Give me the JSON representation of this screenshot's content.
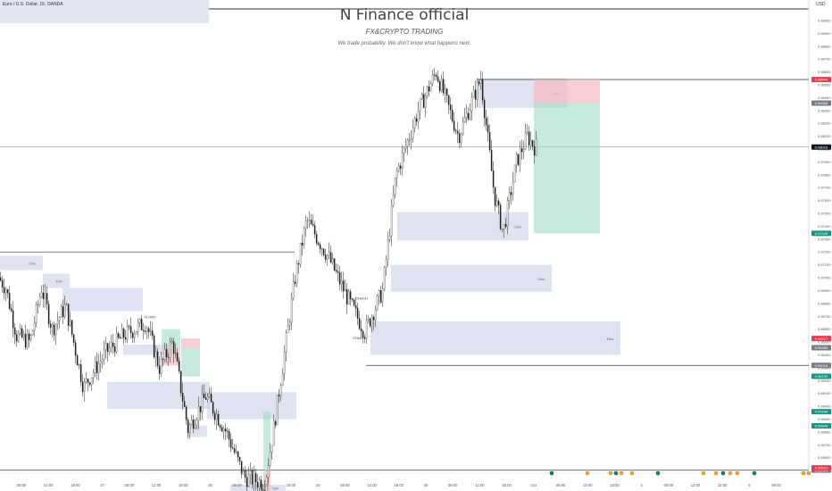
{
  "symbol": "Euro / U.S. Dollar, 15, OANDA",
  "currency": "USD",
  "watermark": {
    "title": "N Finance official",
    "subtitle": "FX&CRYPTO TRADING",
    "tagline": "We trade probability. We don't know what happens next."
  },
  "chart_data": {
    "type": "candlestick",
    "ylim": [
      0.9548,
      0.9909
    ],
    "y_ticks": [
      0.99,
      0.989,
      0.988,
      0.987,
      0.986,
      0.985,
      0.984,
      0.983,
      0.982,
      0.981,
      0.98,
      0.979,
      0.978,
      0.977,
      0.976,
      0.975,
      0.974,
      0.973,
      0.972,
      0.971,
      0.97,
      0.969,
      0.968,
      0.967,
      0.966,
      0.965,
      0.964,
      0.963,
      0.962,
      0.961,
      0.96,
      0.959,
      0.958,
      0.957,
      0.956,
      0.955
    ],
    "x_labels": [
      "06:00",
      "12:00",
      "18:00",
      "27",
      "06:00",
      "12:00",
      "18:00",
      "28",
      "06:00",
      "12:00",
      "18:00",
      "29",
      "06:00",
      "12:00",
      "18:00",
      "30",
      "06:00",
      "12:00",
      "18:00",
      "Oct",
      "06:00",
      "12:00",
      "18:00",
      "4",
      "06:00",
      "12:00",
      "18:00",
      "5",
      "06:00"
    ],
    "current_price": 0.98016,
    "price_badges": [
      {
        "value": "0.98541",
        "color": "#f23645"
      },
      {
        "value": "0.98358",
        "color": "#787b86"
      },
      {
        "value": "0.98016",
        "color": "#131722"
      },
      {
        "value": "0.97345",
        "color": "#089981"
      },
      {
        "value": "0.96527",
        "color": "#f23645"
      },
      {
        "value": "0.96455",
        "color": "#787b86"
      },
      {
        "value": "0.96318",
        "color": "#787b86"
      },
      {
        "value": "0.96233",
        "color": "#089981"
      },
      {
        "value": "0.95958",
        "color": "#089981"
      },
      {
        "value": "0.95848",
        "color": "#089981"
      },
      {
        "value": "0.95503",
        "color": "#787b86"
      },
      {
        "value": "0.95521",
        "color": "#f23645"
      }
    ],
    "zones": [
      {
        "x1": 0,
        "x2": 48,
        "y1": 0.9717,
        "y2": 0.9706,
        "label": "15m"
      },
      {
        "x1": 48,
        "x2": 78,
        "y1": 0.9703,
        "y2": 0.9692,
        "label": "15m"
      },
      {
        "x1": 70,
        "x2": 160,
        "y1": 0.9692,
        "y2": 0.9674,
        "label": ""
      },
      {
        "x1": 138,
        "x2": 192,
        "y1": 0.9648,
        "y2": 0.964,
        "label": ""
      },
      {
        "x1": 120,
        "x2": 235,
        "y1": 0.9619,
        "y2": 0.9598,
        "label": ""
      },
      {
        "x1": 210,
        "x2": 232,
        "y1": 0.9585,
        "y2": 0.9576,
        "label": ""
      },
      {
        "x1": 232,
        "x2": 332,
        "y1": 0.9611,
        "y2": 0.959,
        "label": ""
      },
      {
        "x1": 258,
        "x2": 320,
        "y1": 0.9539,
        "y2": 0.9534,
        "label": "15m"
      },
      {
        "x1": 535,
        "x2": 635,
        "y1": 0.9855,
        "y2": 0.9832,
        "label": "15m"
      },
      {
        "x1": 445,
        "x2": 592,
        "y1": 0.9751,
        "y2": 0.9729,
        "label": "15m"
      },
      {
        "x1": 438,
        "x2": 618,
        "y1": 0.971,
        "y2": 0.9689,
        "label": "15m"
      },
      {
        "x1": 415,
        "x2": 695,
        "y1": 0.9666,
        "y2": 0.964,
        "label": "15m"
      }
    ],
    "positions": [
      {
        "x1": 598,
        "x2": 672,
        "entry": 0.98358,
        "stop": 0.98541,
        "target": 0.97345
      },
      {
        "x1": 203,
        "x2": 224,
        "entry": 0.96455,
        "stop": 0.96527,
        "target": 0.96233
      },
      {
        "x1": 181,
        "x2": 202,
        "entry": 0.96455,
        "stop": 0.96318,
        "target": 0.966
      },
      {
        "x1": 295,
        "x2": 303,
        "entry": 0.95503,
        "stop": 0.9534,
        "target": 0.95958
      }
    ],
    "levels": [
      {
        "y": 0.98541,
        "x1": 535,
        "x2": 906
      },
      {
        "y": 0.96318,
        "x1": 410,
        "x2": 906
      },
      {
        "y": 0.95503,
        "x1": 0,
        "x2": 906
      },
      {
        "y": 0.972,
        "x1": 0,
        "x2": 330
      }
    ],
    "annotations": [
      {
        "text": "FLOR?",
        "x": 168,
        "y": 0.96685
      },
      {
        "text": "CHoCH",
        "x": 405,
        "y": 0.9683
      },
      {
        "text": "CHoCH",
        "x": 402,
        "y": 0.9652
      }
    ]
  }
}
